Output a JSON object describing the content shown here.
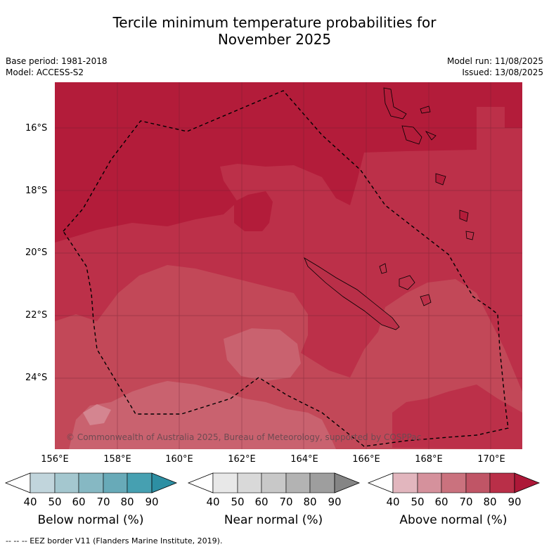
{
  "title_line1": "Tercile minimum temperature probabilities for",
  "title_line2": "November 2025",
  "meta": {
    "base_period": "Base period: 1981-2018",
    "model": "Model: ACCESS-S2",
    "model_run": "Model run: 11/08/2025",
    "issued": "Issued: 13/08/2025"
  },
  "map": {
    "lat_labels": [
      "16°S",
      "18°S",
      "20°S",
      "22°S",
      "24°S"
    ],
    "lon_labels": [
      "156°E",
      "158°E",
      "160°E",
      "162°E",
      "164°E",
      "166°E",
      "168°E",
      "170°E"
    ],
    "copyright": "© Commonwealth of Australia 2025, Bureau of Meteorology, supported by COSPPac"
  },
  "legends": [
    {
      "title": "Below normal (%)",
      "ticks": [
        "40",
        "50",
        "60",
        "70",
        "80",
        "90"
      ],
      "colors": [
        "#ffffff",
        "#c1d5dc",
        "#a4c7cf",
        "#86b8c3",
        "#68aab8",
        "#46a0b1",
        "#2d8fa3"
      ]
    },
    {
      "title": "Near normal (%)",
      "ticks": [
        "40",
        "50",
        "60",
        "70",
        "80",
        "90"
      ],
      "colors": [
        "#ffffff",
        "#e8e8e8",
        "#d9d9d9",
        "#c8c8c8",
        "#b3b3b3",
        "#9e9e9e",
        "#858585"
      ]
    },
    {
      "title": "Above normal (%)",
      "ticks": [
        "40",
        "50",
        "60",
        "70",
        "80",
        "90"
      ],
      "colors": [
        "#ffffff",
        "#e2b6be",
        "#d5919c",
        "#ca727e",
        "#c05566",
        "#b92f48",
        "#ad1838"
      ]
    }
  ],
  "footer": "--  --  -- EEZ border V11 (Flanders Marine Institute, 2019).",
  "colors": {
    "above_90": "#ad1838",
    "above_80": "#b92f48",
    "above_70": "#c05566",
    "above_60": "#ca727e",
    "above_50": "#d5919c"
  }
}
